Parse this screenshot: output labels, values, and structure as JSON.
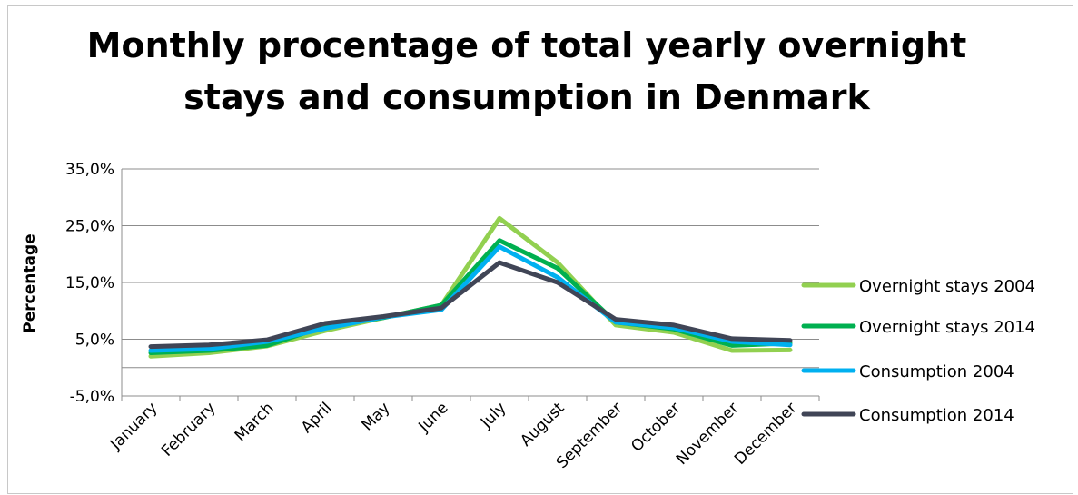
{
  "chart_data": {
    "type": "line",
    "title_lines": [
      "Monthly procentage of total yearly overnight",
      "stays and consumption in Denmark"
    ],
    "xlabel": "",
    "ylabel": "Percentage",
    "ylim": [
      -5,
      35
    ],
    "yticks": [
      -5,
      5,
      15,
      25,
      35
    ],
    "ytick_labels": [
      "-5,0%",
      "5,0%",
      "15,0%",
      "25,0%",
      "35,0%"
    ],
    "grid": true,
    "legend_position": "right",
    "categories": [
      "January",
      "February",
      "March",
      "April",
      "May",
      "June",
      "July",
      "August",
      "September",
      "October",
      "November",
      "December"
    ],
    "series": [
      {
        "name": "Overnight stays 2004",
        "color": "#92d050",
        "values": [
          2.0,
          2.6,
          3.8,
          6.5,
          8.8,
          11.0,
          26.3,
          18.5,
          7.5,
          6.2,
          3.0,
          3.1
        ]
      },
      {
        "name": "Overnight stays 2014",
        "color": "#00b050",
        "values": [
          2.6,
          3.0,
          3.9,
          7.3,
          8.8,
          11.0,
          22.4,
          17.5,
          8.0,
          6.8,
          3.9,
          4.3
        ]
      },
      {
        "name": "Consumption 2004",
        "color": "#00b0f0",
        "values": [
          3.0,
          3.3,
          4.6,
          6.9,
          8.9,
          10.2,
          21.3,
          15.9,
          8.0,
          7.0,
          4.6,
          4.0
        ]
      },
      {
        "name": "Consumption 2014",
        "color": "#404556",
        "values": [
          3.7,
          4.0,
          4.9,
          7.8,
          9.0,
          10.5,
          18.5,
          15.0,
          8.5,
          7.5,
          5.1,
          4.8
        ]
      }
    ]
  }
}
